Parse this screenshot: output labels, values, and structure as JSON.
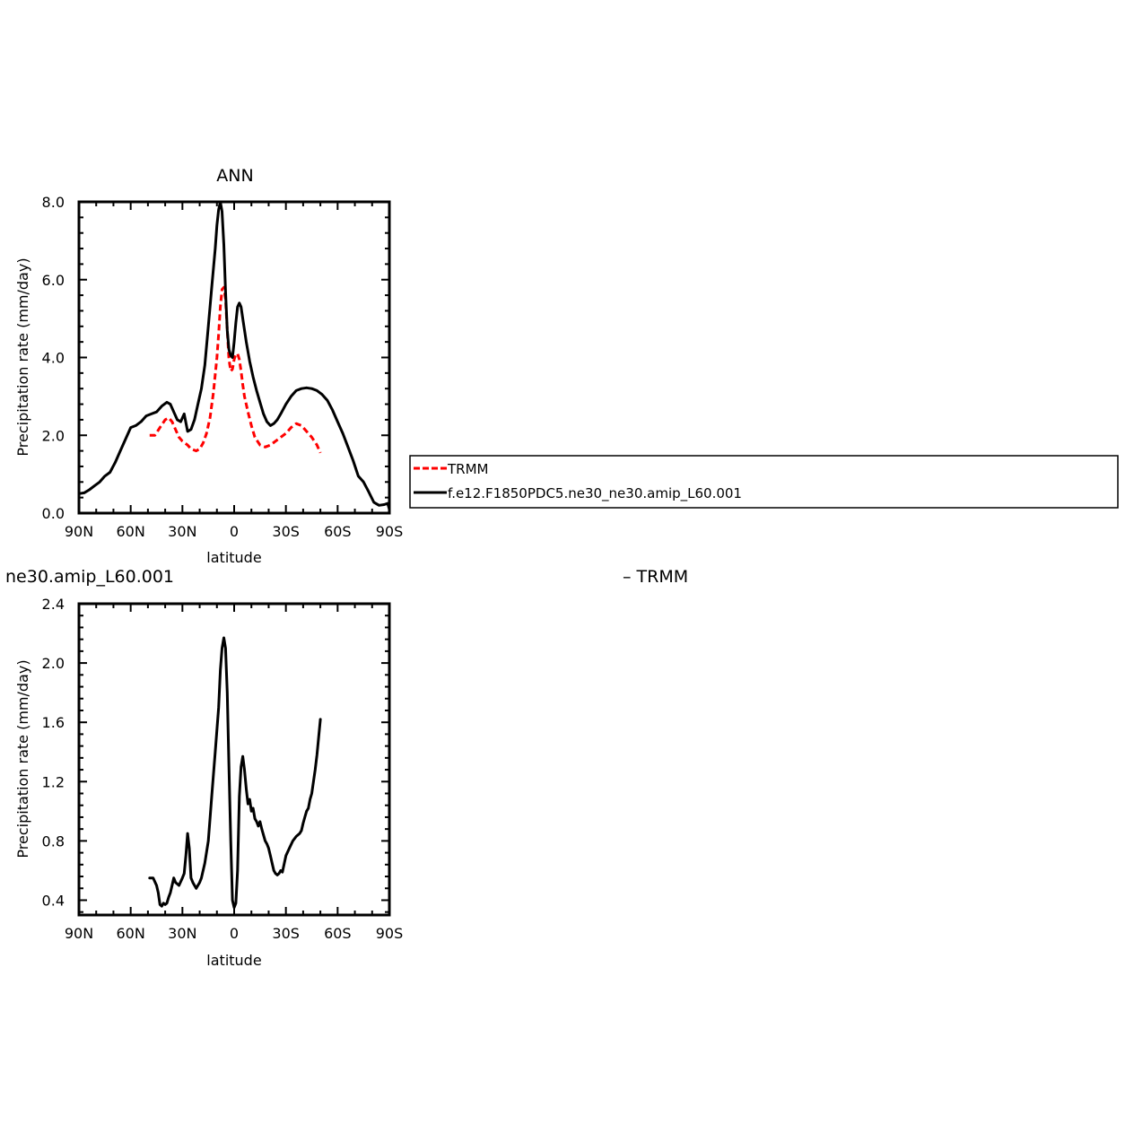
{
  "chart_data": [
    {
      "type": "line",
      "title": "ANN",
      "xlabel": "latitude",
      "ylabel": "Precipitation rate (mm/day)",
      "xlim": [
        90,
        -90
      ],
      "ylim": [
        0,
        8
      ],
      "xticks": [
        90,
        60,
        30,
        0,
        -30,
        -60,
        -90
      ],
      "xtick_labels": [
        "90N",
        "60N",
        "30N",
        "0",
        "30S",
        "60S",
        "90S"
      ],
      "yticks": [
        0,
        2,
        4,
        6,
        8
      ],
      "ytick_labels": [
        "0.0",
        "2.0",
        "4.0",
        "6.0",
        "8.0"
      ],
      "legend": {
        "placement": "right",
        "entries": [
          "TRMM",
          "f.e12.F1850PDC5.ne30_ne30.amip_L60.001"
        ]
      },
      "series": [
        {
          "name": "TRMM",
          "color": "#ff0000",
          "style": "dashed",
          "x": [
            49,
            46,
            43,
            40,
            38,
            36,
            34,
            32,
            30,
            27,
            25,
            22,
            20,
            18,
            16,
            14,
            12,
            10,
            9,
            8,
            7,
            6,
            5,
            4,
            3,
            2,
            1,
            0,
            -1,
            -2,
            -3,
            -4,
            -5,
            -6,
            -8,
            -10,
            -12,
            -15,
            -18,
            -21,
            -24,
            -27,
            -30,
            -33,
            -36,
            -39,
            -42,
            -45,
            -48,
            -50
          ],
          "y": [
            2.0,
            2.0,
            2.2,
            2.4,
            2.45,
            2.35,
            2.15,
            1.95,
            1.85,
            1.75,
            1.65,
            1.6,
            1.65,
            1.8,
            2.05,
            2.45,
            3.1,
            4.0,
            4.6,
            5.3,
            5.75,
            5.8,
            5.5,
            4.7,
            3.95,
            3.65,
            3.7,
            3.95,
            4.08,
            4.1,
            3.95,
            3.65,
            3.3,
            3.0,
            2.6,
            2.25,
            1.95,
            1.75,
            1.7,
            1.75,
            1.85,
            1.95,
            2.05,
            2.2,
            2.3,
            2.25,
            2.1,
            1.95,
            1.75,
            1.55
          ]
        },
        {
          "name": "f.e12.F1850PDC5.ne30_ne30.amip_L60.001",
          "color": "#000000",
          "style": "solid",
          "x": [
            90,
            87,
            84,
            81,
            78,
            75,
            72,
            69,
            66,
            63,
            60,
            57,
            54,
            51,
            48,
            45,
            42,
            39,
            37,
            35,
            33,
            31,
            29,
            27,
            25,
            23,
            21,
            19,
            17,
            15,
            13,
            11,
            10,
            9,
            8,
            7,
            6,
            5,
            4,
            3,
            2,
            1,
            0,
            -1,
            -2,
            -3,
            -4,
            -5,
            -7,
            -9,
            -11,
            -13,
            -15,
            -17,
            -19,
            -21,
            -23,
            -25,
            -27,
            -30,
            -33,
            -36,
            -39,
            -42,
            -45,
            -48,
            -51,
            -54,
            -57,
            -60,
            -63,
            -66,
            -69,
            -72,
            -75,
            -78,
            -81,
            -84,
            -87,
            -89,
            -90
          ],
          "y": [
            0.5,
            0.52,
            0.6,
            0.7,
            0.8,
            0.95,
            1.05,
            1.3,
            1.6,
            1.9,
            2.2,
            2.25,
            2.35,
            2.5,
            2.55,
            2.6,
            2.75,
            2.85,
            2.8,
            2.6,
            2.4,
            2.35,
            2.55,
            2.1,
            2.15,
            2.4,
            2.8,
            3.2,
            3.8,
            4.8,
            5.8,
            6.8,
            7.4,
            7.8,
            8.0,
            7.75,
            6.9,
            5.7,
            4.7,
            4.2,
            4.05,
            4.0,
            4.4,
            4.9,
            5.3,
            5.4,
            5.3,
            5.0,
            4.4,
            3.9,
            3.5,
            3.15,
            2.85,
            2.55,
            2.35,
            2.25,
            2.3,
            2.4,
            2.55,
            2.8,
            3.0,
            3.15,
            3.2,
            3.22,
            3.2,
            3.15,
            3.05,
            2.9,
            2.65,
            2.35,
            2.05,
            1.7,
            1.35,
            0.95,
            0.8,
            0.55,
            0.28,
            0.2,
            0.22,
            0.25,
            0.1
          ]
        }
      ]
    },
    {
      "type": "line",
      "title": "ne30.amip_L60.001",
      "subtitle": "– TRMM",
      "xlabel": "latitude",
      "ylabel": "Precipitation rate (mm/day)",
      "xlim": [
        90,
        -90
      ],
      "ylim": [
        0.3,
        2.4
      ],
      "xticks": [
        90,
        60,
        30,
        0,
        -30,
        -60,
        -90
      ],
      "xtick_labels": [
        "90N",
        "60N",
        "30N",
        "0",
        "30S",
        "60S",
        "90S"
      ],
      "yticks": [
        0.4,
        0.8,
        1.2,
        1.6,
        2.0,
        2.4
      ],
      "ytick_labels": [
        "0.4",
        "0.8",
        "1.2",
        "1.6",
        "2.0",
        "2.4"
      ],
      "series": [
        {
          "color": "#000000",
          "style": "solid",
          "x": [
            49,
            47,
            45,
            44,
            43,
            42,
            41,
            40,
            39,
            38,
            37,
            36,
            35,
            34,
            32,
            30,
            29,
            28,
            27,
            26,
            25,
            24,
            23,
            22,
            21,
            20,
            19,
            17,
            15,
            13,
            11,
            9,
            8,
            7,
            6,
            5,
            4,
            3,
            2,
            1,
            0,
            -1,
            -2,
            -3,
            -4,
            -5,
            -6,
            -7,
            -8,
            -9,
            -10,
            -11,
            -12,
            -13,
            -14,
            -15,
            -16,
            -17,
            -18,
            -19,
            -20,
            -21,
            -22,
            -23,
            -24,
            -25,
            -26,
            -27,
            -28,
            -30,
            -32,
            -34,
            -36,
            -38,
            -39,
            -40,
            -41,
            -42,
            -43,
            -44,
            -45,
            -46,
            -47,
            -48,
            -49,
            -50
          ],
          "y": [
            0.55,
            0.55,
            0.5,
            0.45,
            0.37,
            0.36,
            0.38,
            0.37,
            0.38,
            0.42,
            0.45,
            0.5,
            0.55,
            0.52,
            0.5,
            0.55,
            0.58,
            0.7,
            0.85,
            0.75,
            0.55,
            0.52,
            0.5,
            0.48,
            0.5,
            0.52,
            0.55,
            0.65,
            0.8,
            1.1,
            1.4,
            1.7,
            1.95,
            2.1,
            2.17,
            2.1,
            1.8,
            1.3,
            0.8,
            0.4,
            0.35,
            0.38,
            0.6,
            1.1,
            1.3,
            1.37,
            1.28,
            1.15,
            1.05,
            1.08,
            1.0,
            1.02,
            0.95,
            0.93,
            0.9,
            0.93,
            0.88,
            0.84,
            0.8,
            0.78,
            0.75,
            0.7,
            0.65,
            0.6,
            0.58,
            0.57,
            0.58,
            0.6,
            0.59,
            0.7,
            0.75,
            0.8,
            0.83,
            0.85,
            0.87,
            0.92,
            0.96,
            1.0,
            1.02,
            1.08,
            1.12,
            1.2,
            1.28,
            1.38,
            1.5,
            1.62
          ]
        }
      ]
    }
  ]
}
